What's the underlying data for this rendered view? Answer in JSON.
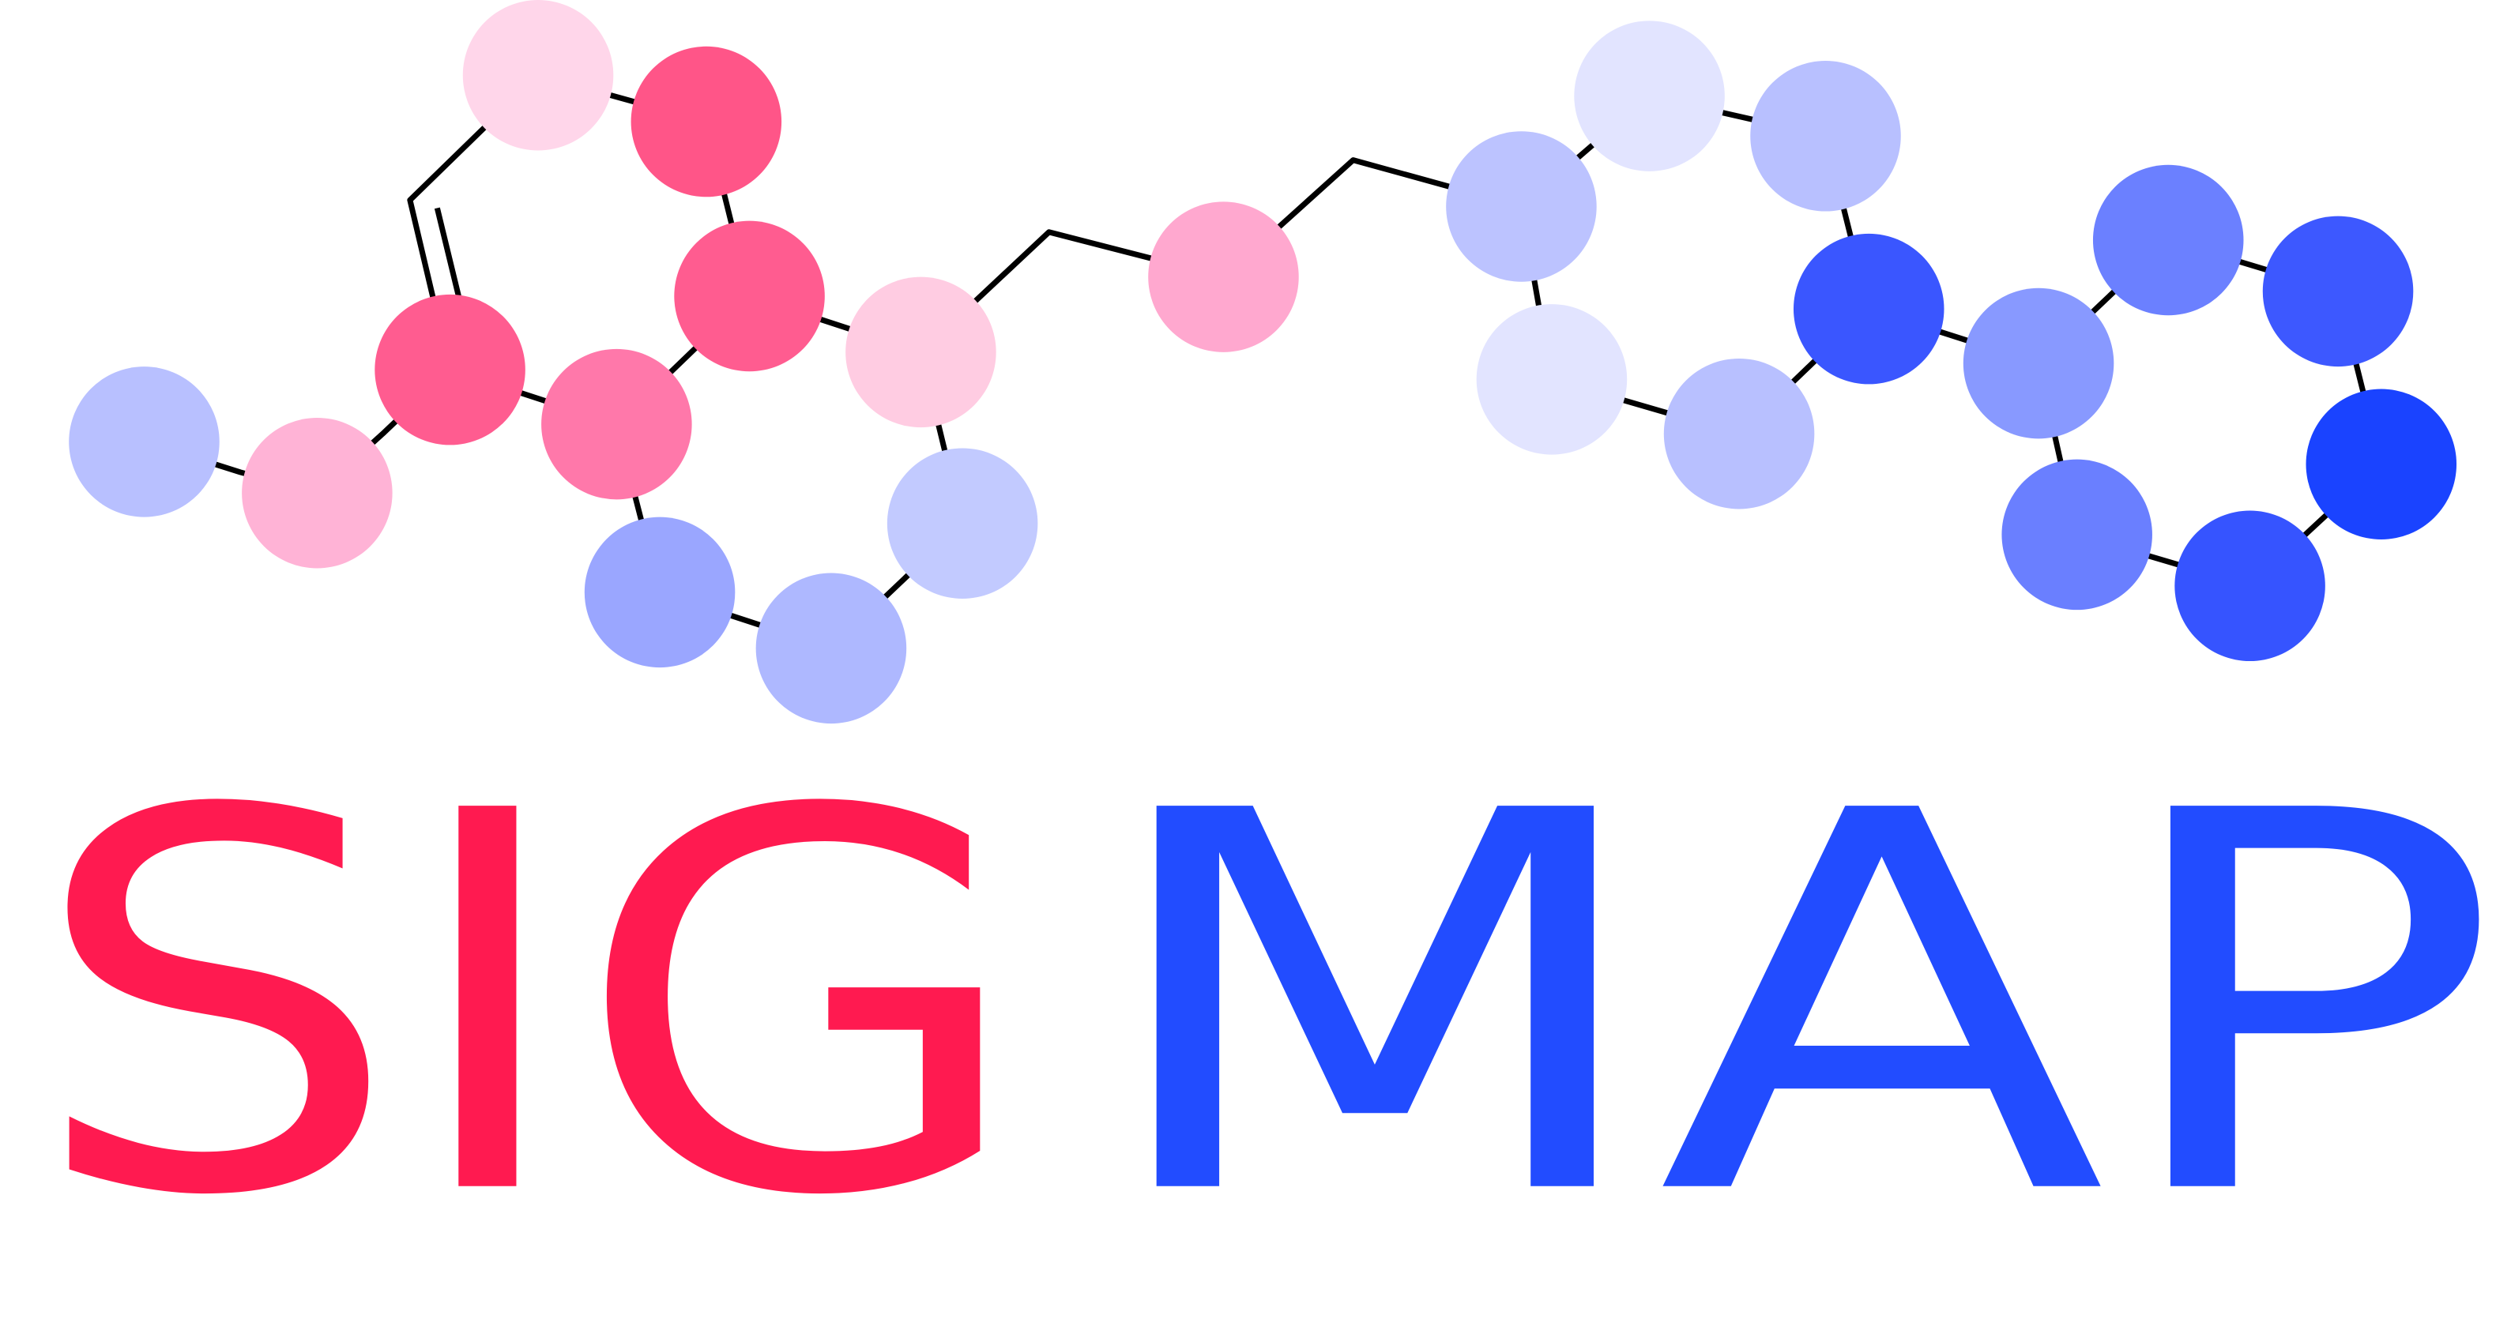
{
  "logo": {
    "parts": [
      "SIG",
      "MAP"
    ]
  }
}
